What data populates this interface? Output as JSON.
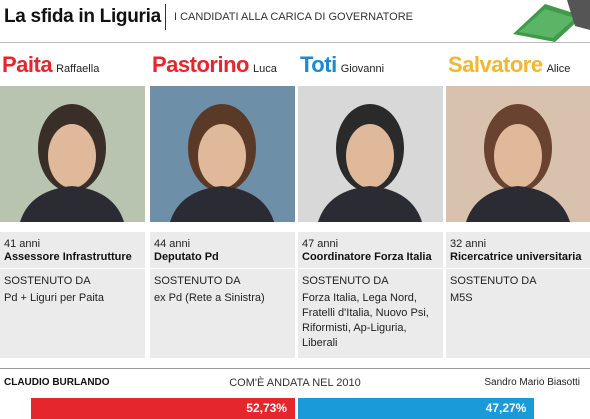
{
  "header": {
    "title": "La sfida in Liguria",
    "subtitle": "I CANDIDATI ALLA CARICA DI GOVERNATORE"
  },
  "candidates": [
    {
      "surname": "Paita",
      "first_name": "Raffaella",
      "age": "41 anni",
      "role": "Assessore Infrastrutture",
      "support_label": "SOSTENUTO DA",
      "support": [
        "Pd + Liguri per Paita"
      ]
    },
    {
      "surname": "Pastorino",
      "first_name": "Luca",
      "age": "44 anni",
      "role": "Deputato Pd",
      "support_label": "SOSTENUTO DA",
      "support": [
        "ex Pd (Rete a Sinistra)"
      ]
    },
    {
      "surname": "Toti",
      "first_name": "Giovanni",
      "age": "47 anni",
      "role": "Coordinatore Forza Italia",
      "support_label": "SOSTENUTO DA",
      "support": [
        "Forza Italia, Lega Nord,",
        "Fratelli d'Italia, Nuovo Psi,",
        "Riformisti, Ap-Liguria,",
        "Liberali"
      ]
    },
    {
      "surname": "Salvatore",
      "first_name": "Alice",
      "age": "32 anni",
      "role": "Ricercatrice universitaria",
      "support_label": "SOSTENUTO DA",
      "support": [
        "M5S"
      ]
    }
  ],
  "results_2010": {
    "title": "COM'È ANDATA NEL 2010",
    "left": {
      "name": "CLAUDIO BURLANDO",
      "value": 52.73,
      "label": "52,73%"
    },
    "right": {
      "name": "Sandro Mario Biasotti",
      "value": 47.27,
      "label": "47,27%"
    }
  }
}
